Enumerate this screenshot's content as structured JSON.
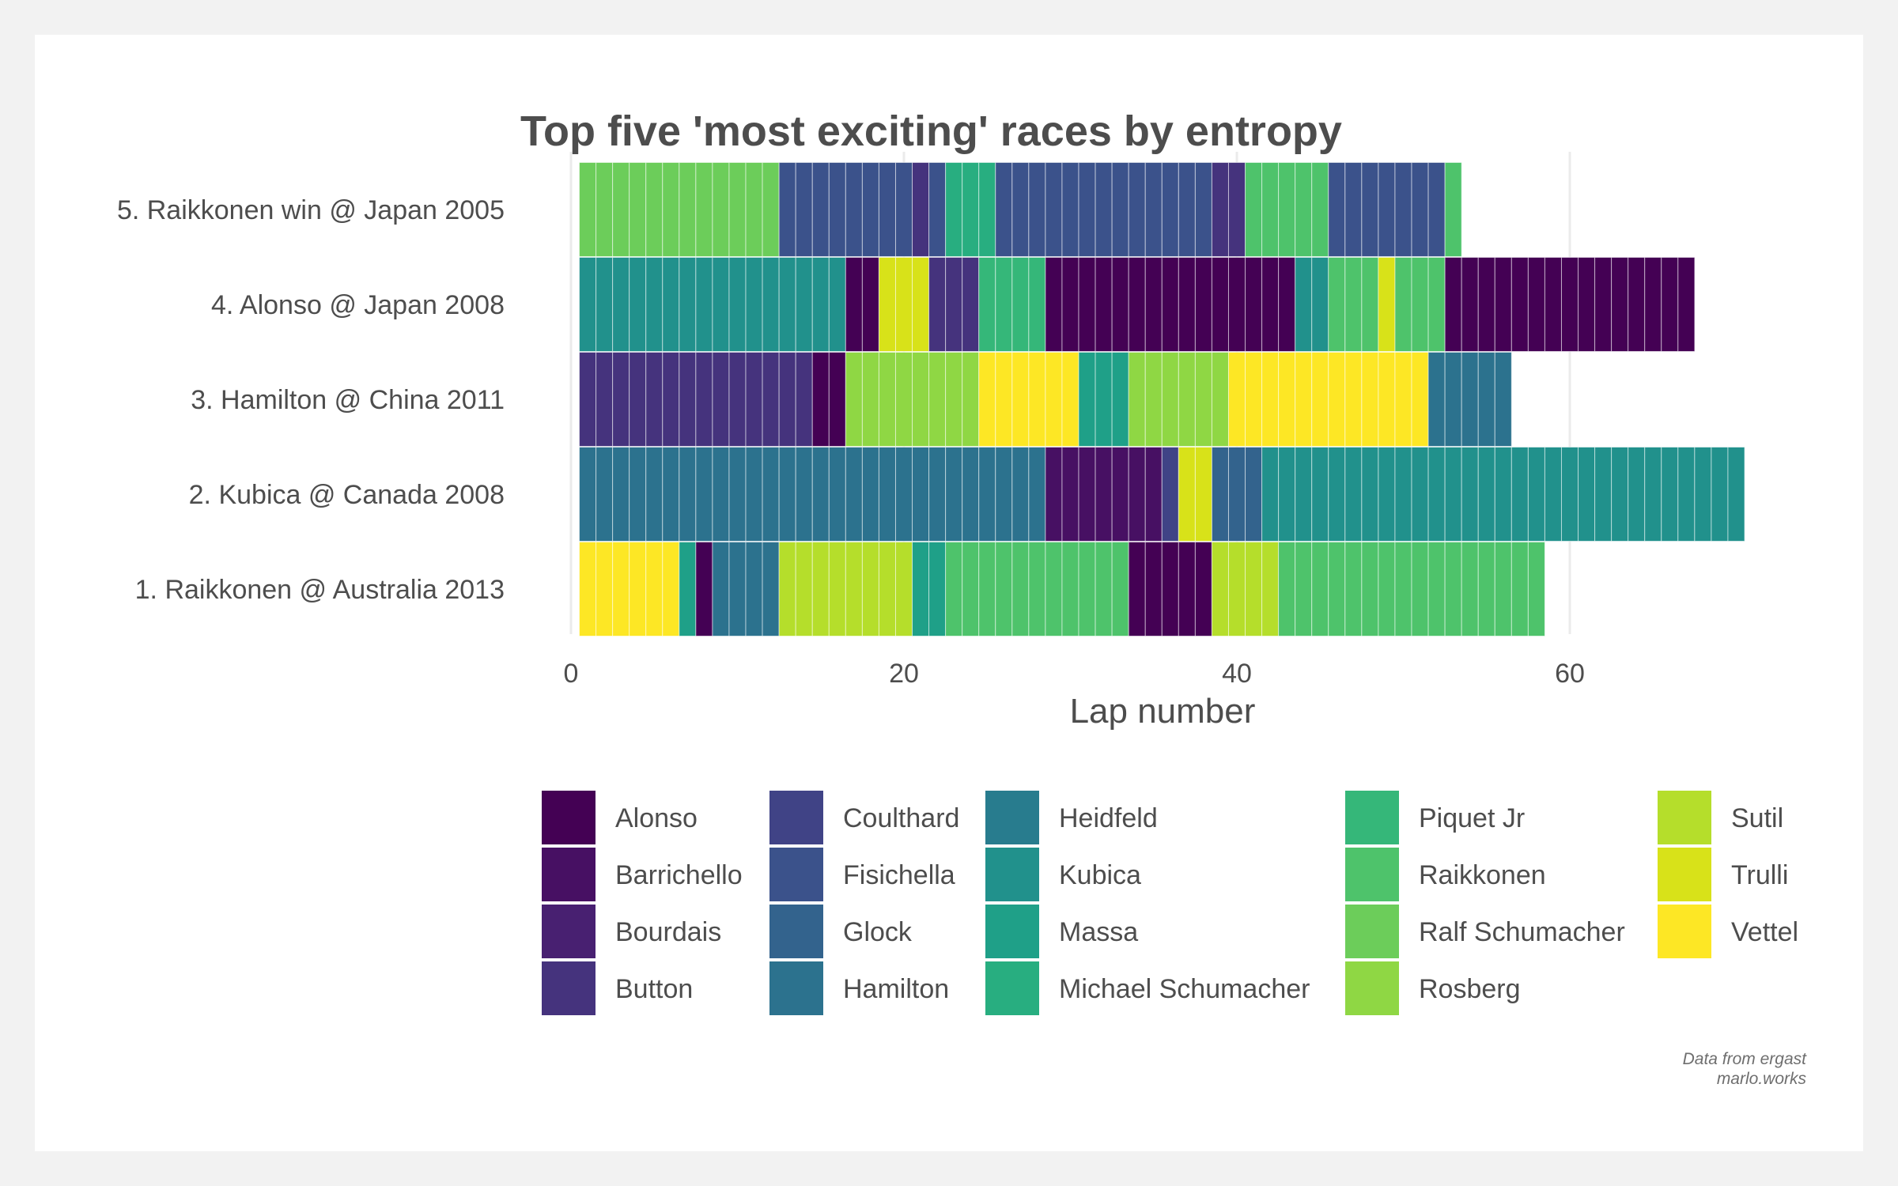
{
  "chart_data": {
    "type": "bar",
    "title": "Top five 'most exciting' races by entropy",
    "xlabel": "Lap number",
    "ylabel": "",
    "xlim": [
      0,
      71
    ],
    "x_ticks": [
      0,
      20,
      40,
      60
    ],
    "grid": true,
    "legend_position": "bottom",
    "legend_title": "",
    "colors": {
      "Alonso": "#440154",
      "Barrichello": "#471063",
      "Bourdais": "#482071",
      "Button": "#45337d",
      "Coulthard": "#404386",
      "Fisichella": "#3b528b",
      "Glock": "#33638d",
      "Hamilton": "#2c728e",
      "Heidfeld": "#287c8e",
      "Kubica": "#21918c",
      "Massa": "#1fa088",
      "Michael Schumacher": "#28ae80",
      "Piquet Jr": "#35b779",
      "Raikkonen": "#4ec36b",
      "Ralf Schumacher": "#6ccd5a",
      "Rosberg": "#8fd744",
      "Sutil": "#b5de2b",
      "Trulli": "#d8e219",
      "Vettel": "#fde725"
    },
    "legend": [
      "Alonso",
      "Barrichello",
      "Bourdais",
      "Button",
      "Coulthard",
      "Fisichella",
      "Glock",
      "Hamilton",
      "Heidfeld",
      "Kubica",
      "Massa",
      "Michael Schumacher",
      "Piquet Jr",
      "Raikkonen",
      "Ralf Schumacher",
      "Rosberg",
      "Sutil",
      "Trulli",
      "Vettel"
    ],
    "races": [
      {
        "label": "5. Raikkonen win @ Japan 2005",
        "laps": 53,
        "leaders": [
          {
            "driver": "Ralf Schumacher",
            "start": 1,
            "end": 12
          },
          {
            "driver": "Fisichella",
            "start": 13,
            "end": 20
          },
          {
            "driver": "Button",
            "start": 21,
            "end": 21
          },
          {
            "driver": "Fisichella",
            "start": 22,
            "end": 22
          },
          {
            "driver": "Michael Schumacher",
            "start": 23,
            "end": 25
          },
          {
            "driver": "Fisichella",
            "start": 26,
            "end": 38
          },
          {
            "driver": "Button",
            "start": 39,
            "end": 40
          },
          {
            "driver": "Raikkonen",
            "start": 41,
            "end": 45
          },
          {
            "driver": "Fisichella",
            "start": 46,
            "end": 52
          },
          {
            "driver": "Raikkonen",
            "start": 53,
            "end": 53
          }
        ]
      },
      {
        "label": "4. Alonso @ Japan 2008",
        "laps": 67,
        "leaders": [
          {
            "driver": "Kubica",
            "start": 1,
            "end": 16
          },
          {
            "driver": "Alonso",
            "start": 17,
            "end": 18
          },
          {
            "driver": "Trulli",
            "start": 19,
            "end": 21
          },
          {
            "driver": "Button",
            "start": 22,
            "end": 24
          },
          {
            "driver": "Piquet Jr",
            "start": 25,
            "end": 28
          },
          {
            "driver": "Alonso",
            "start": 29,
            "end": 43
          },
          {
            "driver": "Kubica",
            "start": 44,
            "end": 45
          },
          {
            "driver": "Raikkonen",
            "start": 46,
            "end": 48
          },
          {
            "driver": "Trulli",
            "start": 49,
            "end": 49
          },
          {
            "driver": "Raikkonen",
            "start": 50,
            "end": 52
          },
          {
            "driver": "Alonso",
            "start": 53,
            "end": 67
          }
        ]
      },
      {
        "label": "3. Hamilton @ China 2011",
        "laps": 56,
        "leaders": [
          {
            "driver": "Button",
            "start": 1,
            "end": 14
          },
          {
            "driver": "Alonso",
            "start": 15,
            "end": 16
          },
          {
            "driver": "Rosberg",
            "start": 17,
            "end": 24
          },
          {
            "driver": "Vettel",
            "start": 25,
            "end": 30
          },
          {
            "driver": "Massa",
            "start": 31,
            "end": 33
          },
          {
            "driver": "Rosberg",
            "start": 34,
            "end": 39
          },
          {
            "driver": "Vettel",
            "start": 40,
            "end": 51
          },
          {
            "driver": "Hamilton",
            "start": 52,
            "end": 56
          }
        ]
      },
      {
        "label": "2. Kubica @ Canada 2008",
        "laps": 70,
        "leaders": [
          {
            "driver": "Hamilton",
            "start": 1,
            "end": 28
          },
          {
            "driver": "Barrichello",
            "start": 29,
            "end": 35
          },
          {
            "driver": "Coulthard",
            "start": 36,
            "end": 36
          },
          {
            "driver": "Trulli",
            "start": 37,
            "end": 38
          },
          {
            "driver": "Glock",
            "start": 39,
            "end": 41
          },
          {
            "driver": "Kubica",
            "start": 42,
            "end": 70
          }
        ]
      },
      {
        "label": "1. Raikkonen @ Australia 2013",
        "laps": 58,
        "leaders": [
          {
            "driver": "Vettel",
            "start": 1,
            "end": 6
          },
          {
            "driver": "Massa",
            "start": 7,
            "end": 7
          },
          {
            "driver": "Alonso",
            "start": 8,
            "end": 8
          },
          {
            "driver": "Hamilton",
            "start": 9,
            "end": 12
          },
          {
            "driver": "Sutil",
            "start": 13,
            "end": 20
          },
          {
            "driver": "Massa",
            "start": 21,
            "end": 22
          },
          {
            "driver": "Raikkonen",
            "start": 23,
            "end": 33
          },
          {
            "driver": "Alonso",
            "start": 34,
            "end": 38
          },
          {
            "driver": "Sutil",
            "start": 39,
            "end": 42
          },
          {
            "driver": "Raikkonen",
            "start": 43,
            "end": 58
          }
        ]
      }
    ]
  },
  "caption": {
    "source": "Data from ergast",
    "site": "marlo.works"
  }
}
